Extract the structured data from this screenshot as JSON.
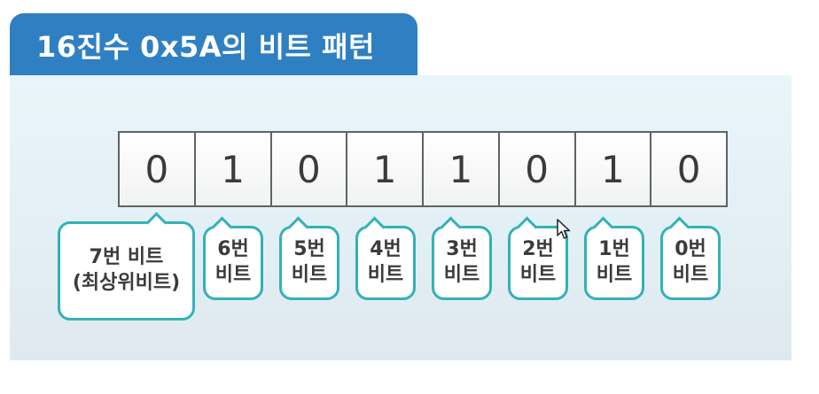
{
  "title": "16진수 0x5A의 비트 패턴",
  "bits": [
    "0",
    "1",
    "0",
    "1",
    "1",
    "0",
    "1",
    "0"
  ],
  "labels": {
    "b7_line1": "7번 비트",
    "b7_line2": "(최상위비트)",
    "b6_line1": "6번",
    "b6_line2": "비트",
    "b5_line1": "5번",
    "b5_line2": "비트",
    "b4_line1": "4번",
    "b4_line2": "비트",
    "b3_line1": "3번",
    "b3_line2": "비트",
    "b2_line1": "2번",
    "b2_line2": "비트",
    "b1_line1": "1번",
    "b1_line2": "비트",
    "b0_line1": "0번",
    "b0_line2": "비트"
  },
  "colors": {
    "title_bar": "#2f80c3",
    "callout_border": "#33b1b7",
    "panel": "#e3f1f6"
  }
}
